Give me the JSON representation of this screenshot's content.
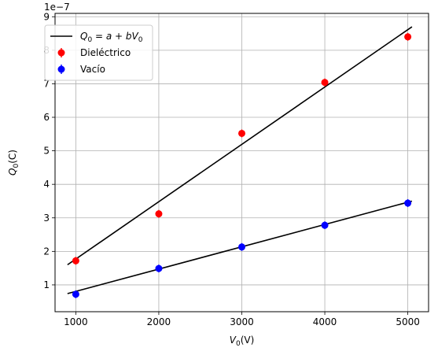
{
  "chart_data": {
    "type": "scatter",
    "xlabel_main": "V",
    "xlabel_sub": "0",
    "xlabel_unit": "(V)",
    "ylabel_main": "Q",
    "ylabel_sub": "0",
    "ylabel_unit": "(C)",
    "offset_text": "1e−7",
    "offset_base": "1e",
    "offset_exp": "−7",
    "y_scale": 1e-07,
    "xlim": [
      750,
      5250
    ],
    "ylim": [
      0.2,
      9.1
    ],
    "xticks": [
      1000,
      2000,
      3000,
      4000,
      5000
    ],
    "yticks": [
      1,
      2,
      3,
      4,
      5,
      6,
      7,
      8,
      9
    ],
    "grid": true,
    "legend_position": "upper left",
    "legend": {
      "fit_label": "Q₀ = a + bV₀",
      "fit_parts": [
        "Q",
        "0",
        " = a + bV",
        "0"
      ],
      "series_labels": [
        "Dieléctrico",
        "Vacío"
      ]
    },
    "series": [
      {
        "name": "Dieléctrico",
        "color": "#ff0000",
        "x": [
          1000,
          2000,
          3000,
          4000,
          5000
        ],
        "y": [
          1.72,
          3.12,
          5.52,
          7.04,
          8.4
        ]
      },
      {
        "name": "Vacío",
        "color": "#0000ff",
        "x": [
          1000,
          2000,
          3000,
          4000,
          5000
        ],
        "y": [
          0.72,
          1.49,
          2.13,
          2.78,
          3.44
        ]
      }
    ],
    "fit_lines": [
      {
        "series": "Dieléctrico",
        "color": "#000000",
        "x": [
          900,
          5050
        ],
        "y": [
          1.6,
          8.7
        ]
      },
      {
        "series": "Vacío",
        "color": "#000000",
        "x": [
          900,
          5050
        ],
        "y": [
          0.74,
          3.5
        ]
      }
    ]
  }
}
